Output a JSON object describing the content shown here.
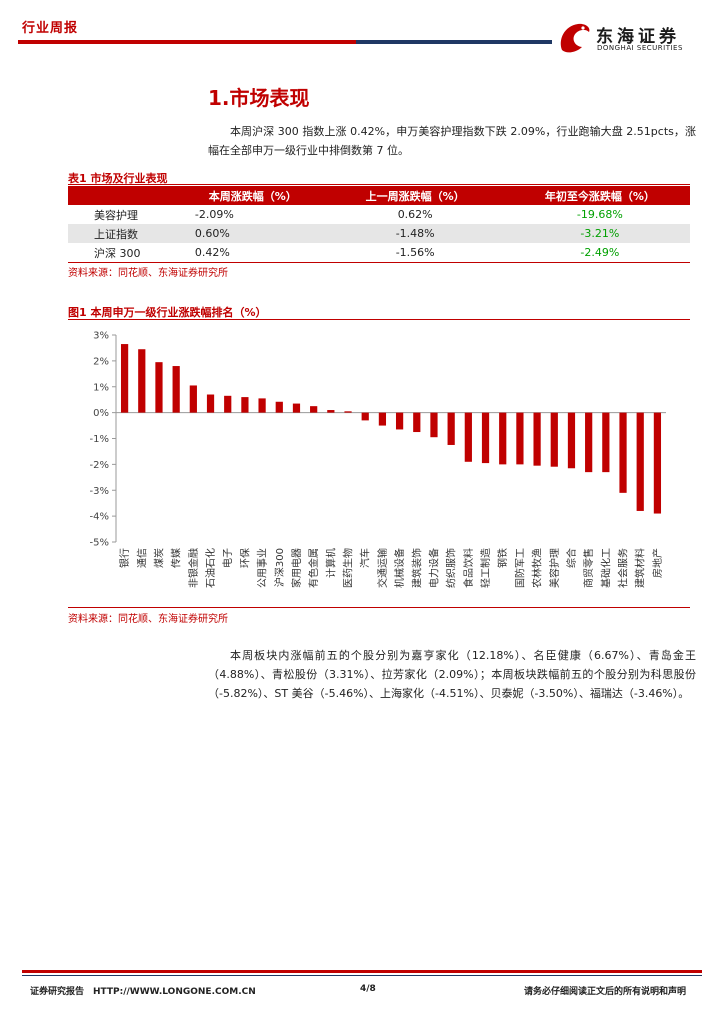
{
  "header": {
    "tag": "行业周报",
    "logo_name": "东海证券",
    "logo_sub": "DONGHAI SECURITIES"
  },
  "section_title": "1.市场表现",
  "intro_text": "本周沪深 300 指数上涨 0.42%，申万美容护理指数下跌 2.09%，行业跑输大盘 2.51pcts，涨幅在全部申万一级行业中排倒数第 7 位。",
  "table1": {
    "caption": "表1  市场及行业表现",
    "headers": [
      "",
      "本周涨跌幅（%）",
      "上一周涨跌幅（%）",
      "年初至今涨跌幅（%）"
    ],
    "rows": [
      [
        "美容护理",
        "-2.09%",
        "0.62%",
        "-19.68%"
      ],
      [
        "上证指数",
        "0.60%",
        "-1.48%",
        "-3.21%"
      ],
      [
        "沪深 300",
        "0.42%",
        "-1.56%",
        "-2.49%"
      ]
    ],
    "source": "资料来源：同花顺、东海证券研究所"
  },
  "figure1": {
    "caption": "图1  本周申万一级行业涨跌幅排名（%）",
    "source": "资料来源：同花顺、东海证券研究所"
  },
  "chart_data": {
    "type": "bar",
    "title": "",
    "xlabel": "",
    "ylabel": "",
    "ylim": [
      -5,
      3
    ],
    "yticks": [
      "3%",
      "2%",
      "1%",
      "0%",
      "-1%",
      "-2%",
      "-3%",
      "-4%",
      "-5%"
    ],
    "categories": [
      "银行",
      "通信",
      "煤炭",
      "传媒",
      "非银金融",
      "石油石化",
      "电子",
      "环保",
      "公用事业",
      "沪深300",
      "家用电器",
      "有色金属",
      "计算机",
      "医药生物",
      "汽车",
      "交通运输",
      "机械设备",
      "建筑装饰",
      "电力设备",
      "纺织服饰",
      "食品饮料",
      "轻工制造",
      "钢铁",
      "国防军工",
      "农林牧渔",
      "美容护理",
      "综合",
      "商贸零售",
      "基础化工",
      "社会服务",
      "建筑材料",
      "房地产"
    ],
    "values": [
      2.65,
      2.45,
      1.95,
      1.8,
      1.05,
      0.7,
      0.65,
      0.6,
      0.55,
      0.42,
      0.35,
      0.25,
      0.1,
      0.05,
      -0.3,
      -0.5,
      -0.65,
      -0.75,
      -0.95,
      -1.25,
      -1.9,
      -1.95,
      -2.0,
      -2.0,
      -2.05,
      -2.09,
      -2.15,
      -2.3,
      -2.3,
      -3.1,
      -3.8,
      -3.9
    ],
    "bar_color": "#c00000",
    "grid": false
  },
  "body_text": "本周板块内涨幅前五的个股分别为嘉亨家化（12.18%）、名臣健康（6.67%）、青岛金王（4.88%）、青松股份（3.31%）、拉芳家化（2.09%）；本周板块跌幅前五的个股分别为科思股份（-5.82%）、ST 美谷（-5.46%）、上海家化（-4.51%）、贝泰妮（-3.50%）、福瑞达（-3.46%）。",
  "footer": {
    "left": "证券研究报告　HTTP://WWW.LONGONE.COM.CN",
    "page": "4/8",
    "right": "请务必仔细阅读正文后的所有说明和声明"
  }
}
